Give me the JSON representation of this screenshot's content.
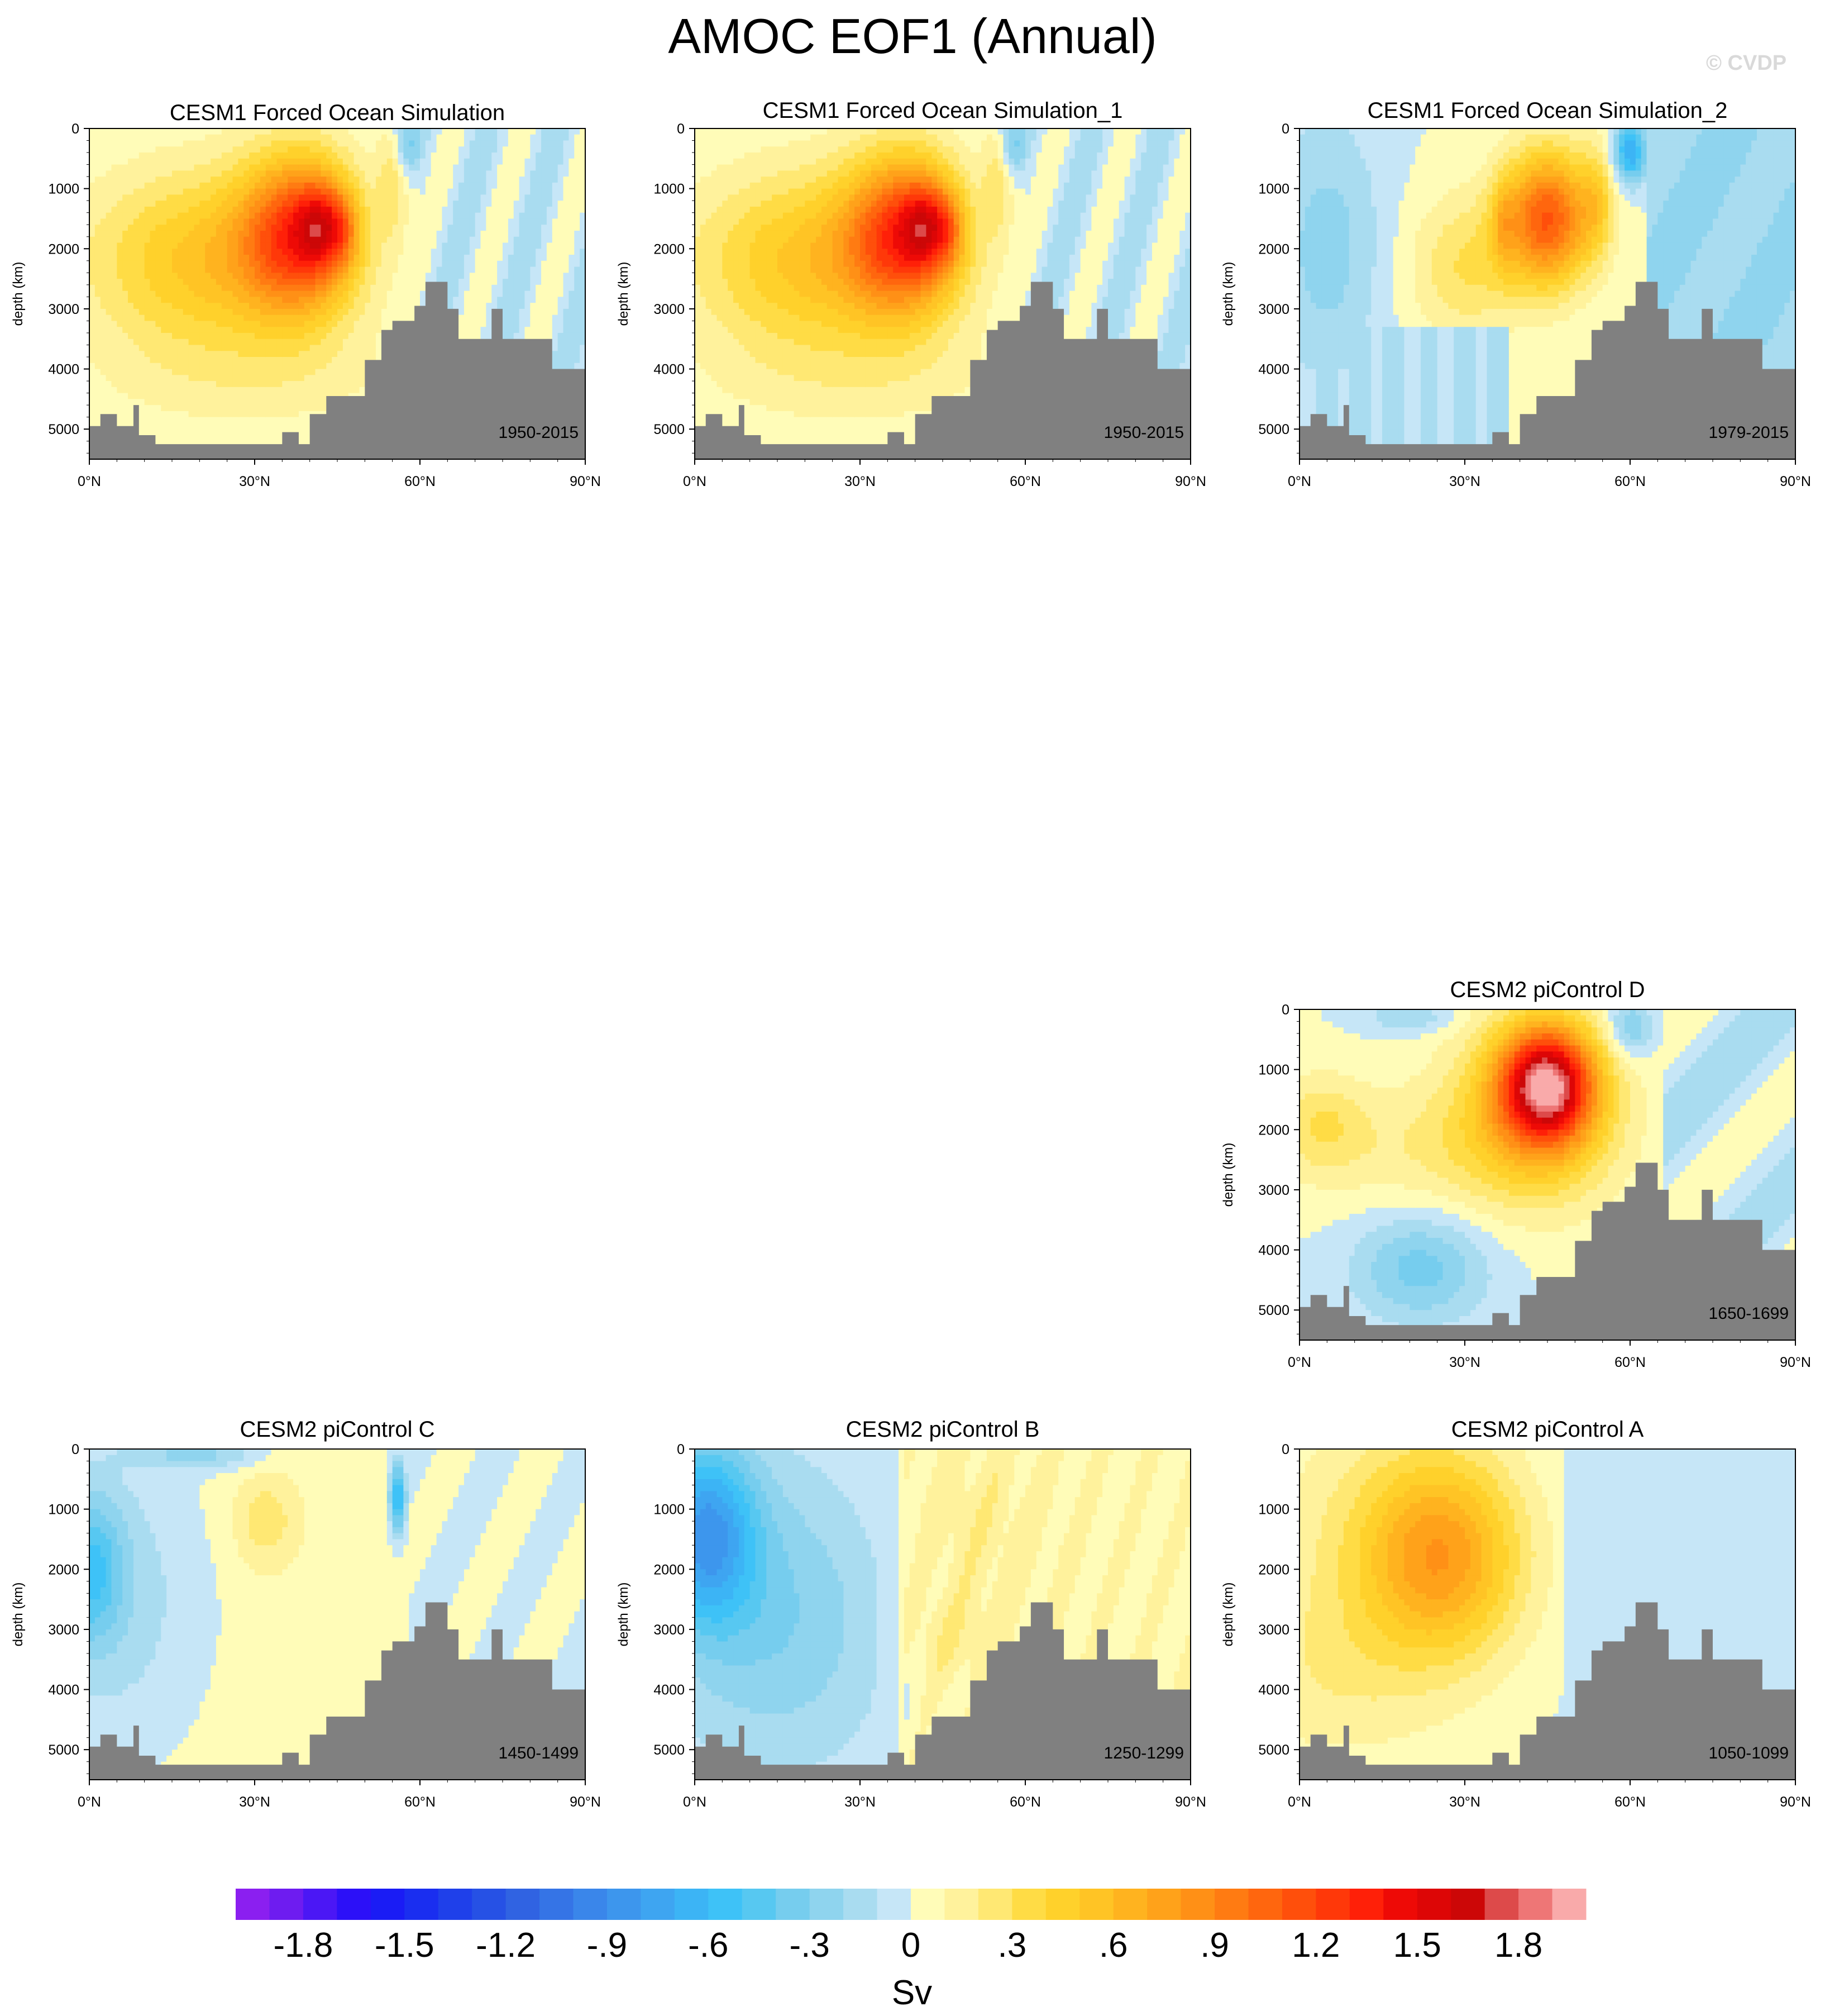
{
  "title": "AMOC EOF1 (Annual)",
  "watermark": "© CVDP",
  "chart_data": [
    {
      "type": "heatmap",
      "title": "CESM1 Forced Ocean Simulation",
      "period": "1950-2015",
      "xlabel": "",
      "ylabel": "depth (km)",
      "xticks": [
        "0°N",
        "30°N",
        "60°N",
        "90°N"
      ],
      "yticks": [
        "0",
        "1000",
        "2000",
        "3000",
        "4000",
        "5000"
      ],
      "xlim": [
        0,
        90
      ],
      "ylim": [
        5500,
        0
      ],
      "pattern": "cesm1"
    },
    {
      "type": "heatmap",
      "title": "CESM1 Forced Ocean Simulation_1",
      "period": "1950-2015",
      "xlabel": "",
      "ylabel": "depth (km)",
      "xticks": [
        "0°N",
        "30°N",
        "60°N",
        "90°N"
      ],
      "yticks": [
        "0",
        "1000",
        "2000",
        "3000",
        "4000",
        "5000"
      ],
      "xlim": [
        0,
        90
      ],
      "ylim": [
        5500,
        0
      ],
      "pattern": "cesm1"
    },
    {
      "type": "heatmap",
      "title": "CESM1 Forced Ocean Simulation_2",
      "period": "1979-2015",
      "xlabel": "",
      "ylabel": "depth (km)",
      "xticks": [
        "0°N",
        "30°N",
        "60°N",
        "90°N"
      ],
      "yticks": [
        "0",
        "1000",
        "2000",
        "3000",
        "4000",
        "5000"
      ],
      "xlim": [
        0,
        90
      ],
      "ylim": [
        5500,
        0
      ],
      "pattern": "cesm1b"
    },
    {
      "type": "heatmap",
      "title": "CESM2 piControl D",
      "period": "1650-1699",
      "xlabel": "",
      "ylabel": "depth (km)",
      "xticks": [
        "0°N",
        "30°N",
        "60°N",
        "90°N"
      ],
      "yticks": [
        "0",
        "1000",
        "2000",
        "3000",
        "4000",
        "5000"
      ],
      "xlim": [
        0,
        90
      ],
      "ylim": [
        5500,
        0
      ],
      "pattern": "picD"
    },
    {
      "type": "heatmap",
      "title": "CESM2 piControl C",
      "period": "1450-1499",
      "xlabel": "",
      "ylabel": "depth (km)",
      "xticks": [
        "0°N",
        "30°N",
        "60°N",
        "90°N"
      ],
      "yticks": [
        "0",
        "1000",
        "2000",
        "3000",
        "4000",
        "5000"
      ],
      "xlim": [
        0,
        90
      ],
      "ylim": [
        5500,
        0
      ],
      "pattern": "picC"
    },
    {
      "type": "heatmap",
      "title": "CESM2 piControl B",
      "period": "1250-1299",
      "xlabel": "",
      "ylabel": "depth (km)",
      "xticks": [
        "0°N",
        "30°N",
        "60°N",
        "90°N"
      ],
      "yticks": [
        "0",
        "1000",
        "2000",
        "3000",
        "4000",
        "5000"
      ],
      "xlim": [
        0,
        90
      ],
      "ylim": [
        5500,
        0
      ],
      "pattern": "picB"
    },
    {
      "type": "heatmap",
      "title": "CESM2 piControl A",
      "period": "1050-1099",
      "xlabel": "",
      "ylabel": "depth (km)",
      "xticks": [
        "0°N",
        "30°N",
        "60°N",
        "90°N"
      ],
      "yticks": [
        "0",
        "1000",
        "2000",
        "3000",
        "4000",
        "5000"
      ],
      "xlim": [
        0,
        90
      ],
      "ylim": [
        5500,
        0
      ],
      "pattern": "picA"
    }
  ],
  "colorbar": {
    "unit": "Sv",
    "tick_labels": [
      "-1.8",
      "-1.5",
      "-1.2",
      "-.9",
      "-.6",
      "-.3",
      "0",
      ".3",
      ".6",
      ".9",
      "1.2",
      "1.5",
      "1.8"
    ],
    "levels": [
      -2.0,
      -1.9,
      -1.8,
      -1.7,
      -1.6,
      -1.5,
      -1.4,
      -1.3,
      -1.2,
      -1.1,
      -1.0,
      -0.9,
      -0.8,
      -0.7,
      -0.6,
      -0.5,
      -0.4,
      -0.3,
      -0.2,
      -0.1,
      0.0,
      0.1,
      0.2,
      0.3,
      0.4,
      0.5,
      0.6,
      0.7,
      0.8,
      0.9,
      1.0,
      1.1,
      1.2,
      1.3,
      1.4,
      1.5,
      1.6,
      1.7,
      1.8,
      1.9,
      2.0
    ],
    "colors": [
      "#8b1ff0",
      "#6e1cf0",
      "#4b17f5",
      "#2c10f8",
      "#1a1cf5",
      "#1a2ef0",
      "#1f40ea",
      "#2651e5",
      "#3063e2",
      "#3574e6",
      "#3a86ea",
      "#3d96ed",
      "#3ea5f1",
      "#3cb4f5",
      "#3ec2f7",
      "#57c8f1",
      "#76cdee",
      "#8fd4ee",
      "#a9dcf0",
      "#c6e6f7",
      "#fffcb8",
      "#fff29c",
      "#ffe873",
      "#ffdc45",
      "#ffd12b",
      "#ffc425",
      "#ffb31f",
      "#ffa21a",
      "#ff9016",
      "#ff7b12",
      "#ff660e",
      "#ff4f0b",
      "#ff3809",
      "#ff2008",
      "#ee0a06",
      "#dd0606",
      "#cc0707",
      "#dd4a4a",
      "#ee7676",
      "#f9aaaa"
    ],
    "land_color": "#808080"
  }
}
